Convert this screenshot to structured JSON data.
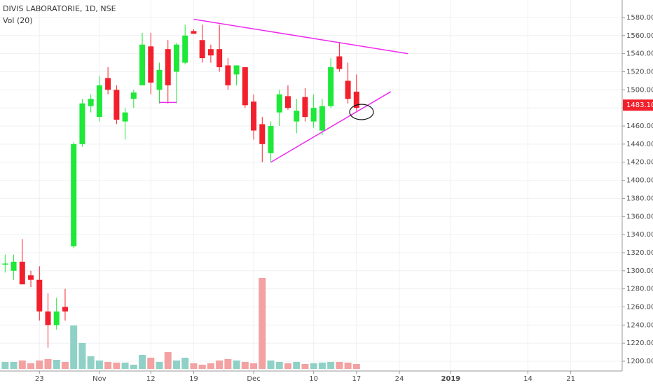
{
  "chart_data": {
    "type": "candlestick",
    "title": "DIVIS LABORATORIE, 1D, NSE",
    "volume_title": "Vol (20)",
    "x": [
      0,
      1,
      2,
      3,
      4,
      5,
      6,
      7,
      8,
      9,
      10,
      11,
      12,
      13,
      14,
      15,
      16,
      17,
      18,
      19,
      20,
      21,
      22,
      23,
      24,
      25,
      26,
      27,
      28,
      29,
      30,
      31,
      32,
      33,
      34,
      35,
      36,
      37,
      38,
      39,
      40,
      41
    ],
    "open": [
      1308,
      1300,
      1310,
      1295,
      1290,
      1255,
      1240,
      1260,
      1327,
      1440,
      1482,
      1470,
      1513,
      1500,
      1465,
      1490,
      1505,
      1548,
      1500,
      1545,
      1520,
      1530,
      1565,
      1555,
      1545,
      1545,
      1527,
      1517,
      1525,
      1487,
      1462,
      1430,
      1475,
      1493,
      1465,
      1492,
      1465,
      1455,
      1482,
      1537,
      1510,
      1498
    ],
    "high": [
      1318,
      1318,
      1335,
      1300,
      1305,
      1275,
      1270,
      1280,
      1442,
      1490,
      1495,
      1515,
      1525,
      1505,
      1480,
      1500,
      1563,
      1563,
      1530,
      1555,
      1552,
      1572,
      1567,
      1572,
      1550,
      1572,
      1535,
      1527,
      1525,
      1495,
      1470,
      1465,
      1500,
      1505,
      1490,
      1502,
      1495,
      1490,
      1535,
      1552,
      1530,
      1517
    ],
    "low": [
      1298,
      1290,
      1285,
      1282,
      1245,
      1215,
      1235,
      1245,
      1325,
      1437,
      1475,
      1465,
      1495,
      1462,
      1445,
      1480,
      1505,
      1495,
      1485,
      1485,
      1485,
      1528,
      1562,
      1530,
      1530,
      1520,
      1500,
      1505,
      1480,
      1445,
      1420,
      1420,
      1460,
      1478,
      1452,
      1465,
      1458,
      1450,
      1480,
      1520,
      1485,
      1477
    ],
    "close": [
      1308,
      1310,
      1285,
      1290,
      1255,
      1240,
      1255,
      1255,
      1440,
      1485,
      1490,
      1505,
      1500,
      1467,
      1475,
      1497,
      1550,
      1508,
      1522,
      1505,
      1550,
      1560,
      1562,
      1535,
      1538,
      1525,
      1505,
      1527,
      1483,
      1455,
      1440,
      1460,
      1495,
      1480,
      1477,
      1470,
      1480,
      1482,
      1525,
      1523,
      1490,
      1480
    ],
    "volume": [
      10,
      10,
      12,
      8,
      12,
      14,
      13,
      10,
      62,
      37,
      18,
      12,
      10,
      9,
      9,
      6,
      20,
      16,
      10,
      24,
      12,
      16,
      8,
      6,
      8,
      12,
      14,
      12,
      10,
      8,
      130,
      12,
      10,
      8,
      10,
      7,
      8,
      9,
      10,
      10,
      9,
      7
    ],
    "volume_ylim": [
      0,
      140
    ],
    "up_color": "#1ee838",
    "down_color": "#f2202c",
    "volume_up_color": "#8fd1c6",
    "volume_down_color": "#f3a1a1",
    "trendline_color": "#ee2aee",
    "trendlines": [
      {
        "x": [
          22,
          47
        ],
        "y": [
          1578,
          1540
        ]
      },
      {
        "x": [
          31,
          45
        ],
        "y": [
          1420,
          1498
        ]
      },
      {
        "x": [
          18,
          20
        ],
        "y": [
          1486,
          1486
        ]
      }
    ],
    "xlim": [
      -0.6,
      72
    ],
    "xticks": [
      {
        "value": 4,
        "label": "23"
      },
      {
        "value": 11,
        "label": "Nov"
      },
      {
        "value": 17,
        "label": "12"
      },
      {
        "value": 22,
        "label": "19"
      },
      {
        "value": 29,
        "label": "Dec"
      },
      {
        "value": 36,
        "label": "10"
      },
      {
        "value": 41,
        "label": "17"
      },
      {
        "value": 46,
        "label": "24"
      },
      {
        "value": 52,
        "label": "2019"
      },
      {
        "value": 61,
        "label": "14"
      },
      {
        "value": 66,
        "label": "21"
      }
    ],
    "ylim": [
      1189.2,
      1599.3
    ],
    "yticks": [
      {
        "value": 1200,
        "label": "1200.00"
      },
      {
        "value": 1220,
        "label": "1220.00"
      },
      {
        "value": 1240,
        "label": "1240.00"
      },
      {
        "value": 1260,
        "label": "1260.00"
      },
      {
        "value": 1280,
        "label": "1280.00"
      },
      {
        "value": 1300,
        "label": "1300.00"
      },
      {
        "value": 1320,
        "label": "1320.00"
      },
      {
        "value": 1340,
        "label": "1340.00"
      },
      {
        "value": 1360,
        "label": "1360.00"
      },
      {
        "value": 1380,
        "label": "1380.00"
      },
      {
        "value": 1400,
        "label": "1400.00"
      },
      {
        "value": 1420,
        "label": "1420.00"
      },
      {
        "value": 1440,
        "label": "1440.00"
      },
      {
        "value": 1460,
        "label": "1460.00"
      },
      {
        "value": 1480,
        "label": "1480.00"
      },
      {
        "value": 1500,
        "label": "1500.00"
      },
      {
        "value": 1520,
        "label": "1520.00"
      },
      {
        "value": 1540,
        "label": "1540.00"
      },
      {
        "value": 1560,
        "label": "1560.00"
      },
      {
        "value": 1580,
        "label": "1580.00"
      }
    ],
    "last_price": {
      "value": 1483.1,
      "label": "1483.10"
    },
    "grid": true
  }
}
